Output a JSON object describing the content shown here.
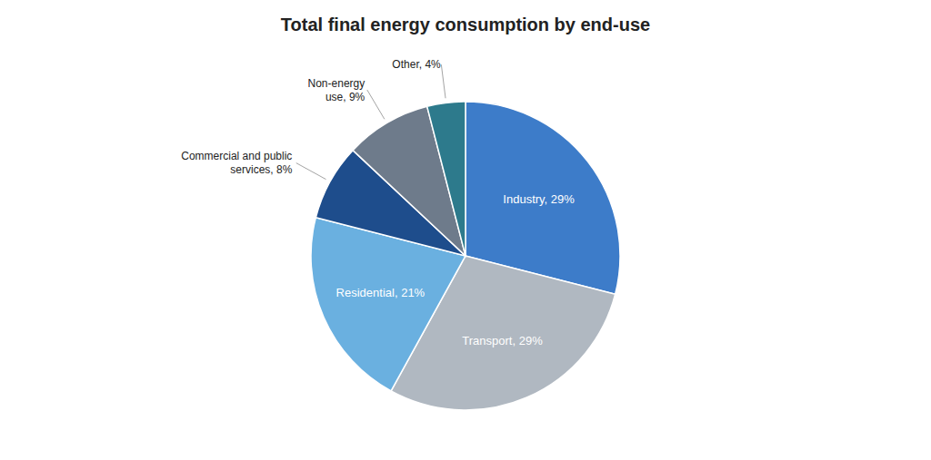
{
  "chart_data": {
    "type": "pie",
    "title": "Total final energy consumption by end-use",
    "values": [
      29,
      29,
      21,
      8,
      9,
      4
    ],
    "value_labels": [
      "Industry, 29%",
      "Transport, 29%",
      "Residential, 21%",
      "Commercial and public\nservices, 8%",
      "Non-energy\nuse, 9%",
      "Other, 4%"
    ],
    "colors": [
      "#3d7cc9",
      "#b0b8c1",
      "#6ab0e0",
      "#1e4d8c",
      "#6e7b8b",
      "#2d7a8c"
    ],
    "data_labels": true
  }
}
